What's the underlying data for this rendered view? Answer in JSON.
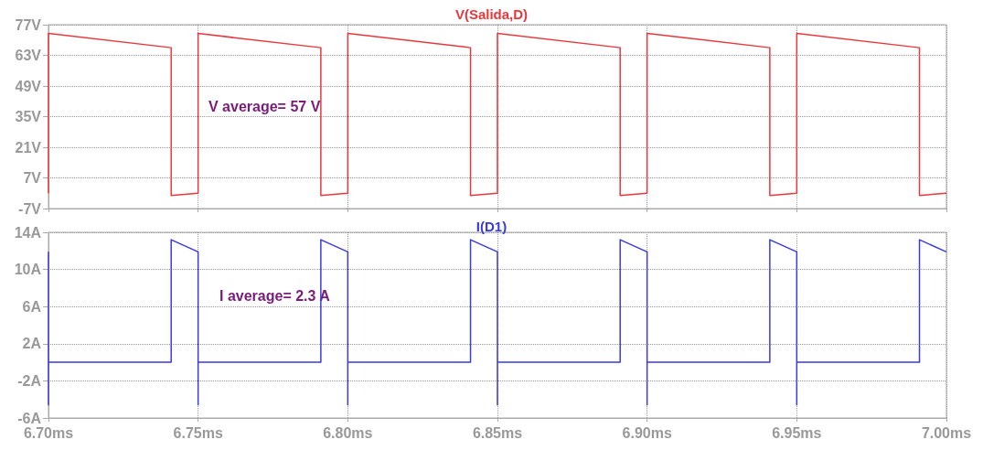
{
  "chart_data": [
    {
      "type": "line",
      "title": "V(Salida,D)",
      "annotations": [
        "V average= 57 V"
      ],
      "xlim": [
        6.7,
        7.0
      ],
      "xticks": [
        {
          "value": 6.7,
          "label": null
        },
        {
          "value": 6.75,
          "label": null
        },
        {
          "value": 6.8,
          "label": null
        },
        {
          "value": 6.85,
          "label": null
        },
        {
          "value": 6.9,
          "label": null
        },
        {
          "value": 6.95,
          "label": null
        },
        {
          "value": 7.0,
          "label": null
        }
      ],
      "ylim": [
        -7,
        77
      ],
      "yticks": [
        {
          "value": -7,
          "label": "-7V"
        },
        {
          "value": 7,
          "label": "7V"
        },
        {
          "value": 21,
          "label": "21V"
        },
        {
          "value": 35,
          "label": "35V"
        },
        {
          "value": 49,
          "label": "49V"
        },
        {
          "value": 63,
          "label": "63V"
        },
        {
          "value": 77,
          "label": "77V"
        }
      ],
      "grid": true,
      "tick_labels": "y",
      "series": [
        {
          "color": "#e8383c",
          "x": [
            6.7,
            6.7,
            6.741,
            6.741,
            6.75,
            6.75,
            6.791,
            6.791,
            6.8,
            6.8,
            6.841,
            6.841,
            6.85,
            6.85,
            6.891,
            6.891,
            6.9,
            6.9,
            6.941,
            6.941,
            6.95,
            6.95,
            6.991,
            6.991,
            7.0
          ],
          "values": [
            0,
            73,
            66.5,
            -1,
            0,
            73,
            66.5,
            -1,
            0,
            73,
            66.5,
            -1,
            0,
            73,
            66.5,
            -1,
            0,
            73,
            66.5,
            -1,
            0,
            73,
            66.5,
            -1,
            0
          ]
        }
      ]
    },
    {
      "type": "line",
      "title": "I(D1)",
      "annotations": [
        "I average= 2.3 A"
      ],
      "xlim": [
        6.7,
        7.0
      ],
      "xticks": [
        {
          "value": 6.7,
          "label": "6.70ms"
        },
        {
          "value": 6.75,
          "label": "6.75ms"
        },
        {
          "value": 6.8,
          "label": "6.80ms"
        },
        {
          "value": 6.85,
          "label": "6.85ms"
        },
        {
          "value": 6.9,
          "label": "6.90ms"
        },
        {
          "value": 6.95,
          "label": "6.95ms"
        },
        {
          "value": 7.0,
          "label": "7.00ms"
        }
      ],
      "ylim": [
        -6,
        14
      ],
      "yticks": [
        {
          "value": -6,
          "label": "-6A"
        },
        {
          "value": -2,
          "label": "-2A"
        },
        {
          "value": 2,
          "label": "2A"
        },
        {
          "value": 6,
          "label": "6A"
        },
        {
          "value": 10,
          "label": "10A"
        },
        {
          "value": 14,
          "label": "14A"
        }
      ],
      "grid": true,
      "series": [
        {
          "color": "#3a3ae0",
          "x": [
            6.7,
            6.7,
            6.7,
            6.741,
            6.741,
            6.75,
            6.75,
            6.75,
            6.791,
            6.791,
            6.8,
            6.8,
            6.8,
            6.841,
            6.841,
            6.85,
            6.85,
            6.85,
            6.891,
            6.891,
            6.9,
            6.9,
            6.9,
            6.941,
            6.941,
            6.95,
            6.95,
            6.95,
            6.991,
            6.991,
            7.0
          ],
          "values": [
            11.9,
            -4.6,
            0,
            0,
            13.2,
            11.9,
            -4.6,
            0,
            0,
            13.2,
            11.9,
            -4.6,
            0,
            0,
            13.2,
            11.9,
            -4.6,
            0,
            0,
            13.2,
            11.9,
            -4.6,
            0,
            0,
            13.2,
            11.9,
            -4.6,
            0,
            0,
            13.2,
            11.9
          ]
        }
      ]
    }
  ]
}
